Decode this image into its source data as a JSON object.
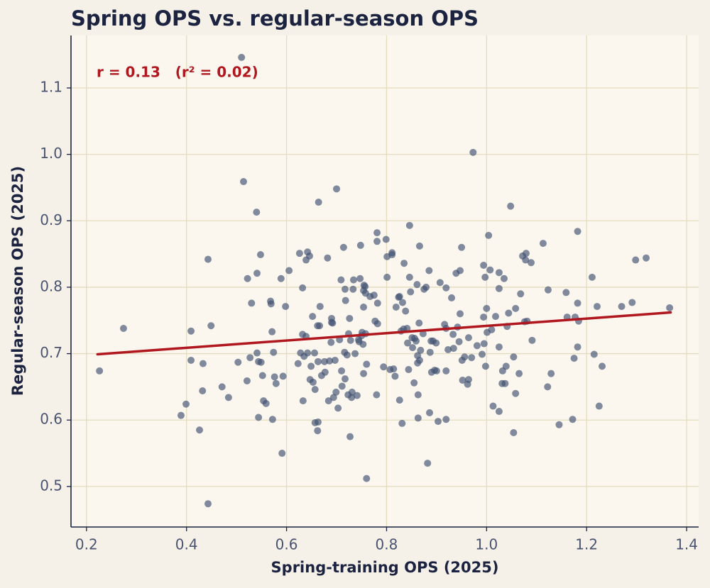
{
  "chart_data": {
    "type": "scatter",
    "title": "Spring OPS vs. regular-season OPS",
    "x_label": "Spring-training OPS (2025)",
    "y_label": "Regular-season OPS (2025)",
    "annotation": "r = 0.13   (r² = 0.02)",
    "color": "#3f5070",
    "grid": true,
    "xlim": [
      0.169,
      1.424
    ],
    "ylim": [
      0.439,
      1.179
    ],
    "xticks": [
      0.2,
      0.4,
      0.6,
      0.8,
      {
        "value": 1,
        "label": "1.0"
      },
      1.2,
      1.4
    ],
    "yticks": [
      0.5,
      0.6,
      0.7,
      0.8,
      0.9,
      {
        "value": 1,
        "label": "1.0"
      },
      1.1
    ],
    "trend_line": {
      "x": [
        0.222,
        1.368
      ],
      "y": [
        0.699,
        0.762
      ],
      "color": "#b0171f"
    },
    "x": [
      0.226,
      0.274,
      0.389,
      0.399,
      0.409,
      0.409,
      0.426,
      0.432,
      0.433,
      0.443,
      0.443,
      0.449,
      0.471,
      0.484,
      0.503,
      0.51,
      0.514,
      0.521,
      0.522,
      0.527,
      0.53,
      0.54,
      0.541,
      0.541,
      0.544,
      0.544,
      0.548,
      0.549,
      0.552,
      0.554,
      0.559,
      0.568,
      0.569,
      0.571,
      0.572,
      0.574,
      0.576,
      0.579,
      0.589,
      0.591,
      0.593,
      0.598,
      0.605,
      0.623,
      0.626,
      0.628,
      0.632,
      0.632,
      0.633,
      0.635,
      0.639,
      0.639,
      0.642,
      0.642,
      0.646,
      0.647,
      0.649,
      0.652,
      0.653,
      0.656,
      0.657,
      0.657,
      0.662,
      0.662,
      0.663,
      0.663,
      0.664,
      0.666,
      0.667,
      0.67,
      0.676,
      0.677,
      0.682,
      0.684,
      0.686,
      0.689,
      0.69,
      0.69,
      0.692,
      0.694,
      0.697,
      0.699,
      0.7,
      0.703,
      0.706,
      0.709,
      0.71,
      0.711,
      0.714,
      0.716,
      0.717,
      0.717,
      0.718,
      0.721,
      0.723,
      0.724,
      0.726,
      0.727,
      0.728,
      0.73,
      0.731,
      0.733,
      0.734,
      0.737,
      0.741,
      0.744,
      0.745,
      0.747,
      0.748,
      0.75,
      0.751,
      0.753,
      0.754,
      0.754,
      0.754,
      0.755,
      0.757,
      0.758,
      0.758,
      0.76,
      0.76,
      0.767,
      0.775,
      0.777,
      0.78,
      0.781,
      0.781,
      0.782,
      0.782,
      0.794,
      0.799,
      0.801,
      0.801,
      0.807,
      0.811,
      0.811,
      0.814,
      0.817,
      0.819,
      0.824,
      0.826,
      0.826,
      0.829,
      0.831,
      0.832,
      0.834,
      0.835,
      0.838,
      0.841,
      0.842,
      0.844,
      0.846,
      0.846,
      0.848,
      0.851,
      0.852,
      0.855,
      0.856,
      0.859,
      0.861,
      0.862,
      0.862,
      0.863,
      0.863,
      0.865,
      0.866,
      0.866,
      0.868,
      0.873,
      0.875,
      0.879,
      0.882,
      0.885,
      0.886,
      0.887,
      0.889,
      0.89,
      0.893,
      0.896,
      0.899,
      0.9,
      0.903,
      0.907,
      0.916,
      0.919,
      0.919,
      0.919,
      0.919,
      0.923,
      0.93,
      0.933,
      0.934,
      0.939,
      0.942,
      0.945,
      0.947,
      0.947,
      0.95,
      0.951,
      0.952,
      0.956,
      0.962,
      0.964,
      0.964,
      0.97,
      0.973,
      0.981,
      0.991,
      0.994,
      0.995,
      0.994,
      0.997,
      0.998,
      1.0,
      1.001,
      1.004,
      1.007,
      1.01,
      1.013,
      1.018,
      1.025,
      1.025,
      1.025,
      1.025,
      1.031,
      1.032,
      1.035,
      1.037,
      1.039,
      1.041,
      1.044,
      1.048,
      1.054,
      1.054,
      1.058,
      1.058,
      1.065,
      1.068,
      1.072,
      1.076,
      1.078,
      1.079,
      1.081,
      1.089,
      1.091,
      1.113,
      1.122,
      1.123,
      1.129,
      1.145,
      1.159,
      1.161,
      1.172,
      1.175,
      1.177,
      1.182,
      1.182,
      1.182,
      1.184,
      1.211,
      1.215,
      1.221,
      1.225,
      1.231,
      1.27,
      1.291,
      1.298,
      1.319,
      1.366
    ],
    "values": [
      0.674,
      0.738,
      0.607,
      0.624,
      0.734,
      0.69,
      0.585,
      0.644,
      0.685,
      0.842,
      0.474,
      0.742,
      0.65,
      0.634,
      0.687,
      1.146,
      0.959,
      0.659,
      0.813,
      0.694,
      0.776,
      0.913,
      0.821,
      0.701,
      0.604,
      0.688,
      0.849,
      0.687,
      0.667,
      0.629,
      0.625,
      0.779,
      0.775,
      0.733,
      0.601,
      0.702,
      0.665,
      0.655,
      0.813,
      0.55,
      0.666,
      0.771,
      0.825,
      0.685,
      0.851,
      0.701,
      0.799,
      0.729,
      0.629,
      0.696,
      0.841,
      0.726,
      0.853,
      0.701,
      0.847,
      0.661,
      0.681,
      0.756,
      0.657,
      0.701,
      0.596,
      0.646,
      0.584,
      0.742,
      0.597,
      0.688,
      0.928,
      0.742,
      0.771,
      0.667,
      0.688,
      0.672,
      0.844,
      0.629,
      0.689,
      0.717,
      0.753,
      0.747,
      0.746,
      0.634,
      0.69,
      0.642,
      0.948,
      0.618,
      0.721,
      0.811,
      0.674,
      0.651,
      0.86,
      0.702,
      0.662,
      0.797,
      0.78,
      0.698,
      0.638,
      0.73,
      0.753,
      0.575,
      0.72,
      0.634,
      0.642,
      0.797,
      0.811,
      0.7,
      0.637,
      0.721,
      0.718,
      0.813,
      0.863,
      0.727,
      0.732,
      0.714,
      0.77,
      0.795,
      0.67,
      0.803,
      0.801,
      0.73,
      0.791,
      0.512,
      0.684,
      0.786,
      0.788,
      0.749,
      0.638,
      0.869,
      0.882,
      0.776,
      0.745,
      0.68,
      0.872,
      0.846,
      0.815,
      0.676,
      0.852,
      0.849,
      0.677,
      0.666,
      0.77,
      0.785,
      0.786,
      0.63,
      0.734,
      0.595,
      0.777,
      0.737,
      0.836,
      0.764,
      0.738,
      0.716,
      0.676,
      0.893,
      0.815,
      0.793,
      0.724,
      0.709,
      0.656,
      0.723,
      0.719,
      0.804,
      0.697,
      0.686,
      0.638,
      0.603,
      0.746,
      0.862,
      0.69,
      0.705,
      0.73,
      0.797,
      0.8,
      0.535,
      0.825,
      0.611,
      0.702,
      0.719,
      0.672,
      0.719,
      0.675,
      0.716,
      0.674,
      0.598,
      0.807,
      0.744,
      0.601,
      0.799,
      0.674,
      0.738,
      0.706,
      0.784,
      0.729,
      0.708,
      0.821,
      0.74,
      0.718,
      0.825,
      0.76,
      0.86,
      0.69,
      0.66,
      0.695,
      0.654,
      0.661,
      0.724,
      0.694,
      1.003,
      0.712,
      0.699,
      0.833,
      0.715,
      0.755,
      0.815,
      0.681,
      0.768,
      0.732,
      0.878,
      0.826,
      0.736,
      0.621,
      0.756,
      0.71,
      0.613,
      0.798,
      0.822,
      0.655,
      0.674,
      0.813,
      0.655,
      0.681,
      0.741,
      0.761,
      0.922,
      0.695,
      0.581,
      0.768,
      0.64,
      0.67,
      0.79,
      0.847,
      0.748,
      0.841,
      0.851,
      0.749,
      0.837,
      0.72,
      0.866,
      0.65,
      0.796,
      0.67,
      0.593,
      0.792,
      0.755,
      0.601,
      0.693,
      0.755,
      0.884,
      0.776,
      0.71,
      0.749,
      0.815,
      0.699,
      0.771,
      0.621,
      0.681,
      0.771,
      0.777,
      0.841,
      0.844,
      0.769
    ]
  }
}
